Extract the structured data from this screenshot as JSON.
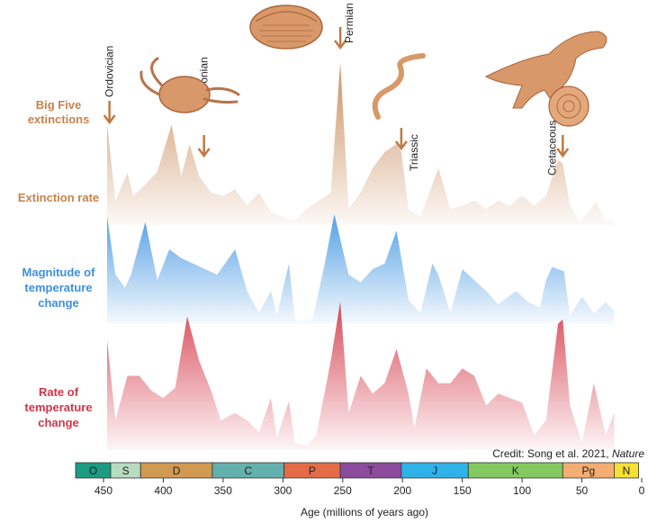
{
  "chart_data": {
    "type": "area",
    "xlabel": "Age (millions of years ago)",
    "xlim": [
      0,
      460
    ],
    "x_reversed": true,
    "xticks": [
      450,
      400,
      350,
      300,
      250,
      200,
      150,
      100,
      50,
      0
    ],
    "credit": {
      "text": "Credit: Song et al. 2021, ",
      "journal": "Nature"
    },
    "big_five_label": [
      "Big Five",
      "extinctions"
    ],
    "extinction_events": [
      {
        "name": "Ordovician",
        "age": 445
      },
      {
        "name": "Devonian",
        "age": 372
      },
      {
        "name": "Permian",
        "age": 252
      },
      {
        "name": "Triassic",
        "age": 201
      },
      {
        "name": "Cretaceous",
        "age": 66
      }
    ],
    "series": [
      {
        "name": "Extinction rate",
        "color": "#c98a5a",
        "x": [
          447,
          440,
          430,
          425,
          415,
          405,
          393,
          385,
          378,
          370,
          360,
          350,
          340,
          330,
          320,
          310,
          300,
          290,
          280,
          270,
          260,
          252,
          245,
          235,
          225,
          215,
          205,
          201,
          195,
          185,
          170,
          160,
          150,
          140,
          130,
          120,
          110,
          100,
          90,
          80,
          70,
          66,
          60,
          52,
          45,
          38,
          30,
          23
        ],
        "y": [
          0.62,
          0.15,
          0.32,
          0.18,
          0.25,
          0.33,
          0.62,
          0.3,
          0.5,
          0.3,
          0.2,
          0.18,
          0.22,
          0.12,
          0.2,
          0.08,
          0.05,
          0.03,
          0.1,
          0.15,
          0.2,
          1.0,
          0.1,
          0.2,
          0.35,
          0.45,
          0.5,
          0.45,
          0.1,
          0.05,
          0.35,
          0.1,
          0.12,
          0.15,
          0.1,
          0.15,
          0.12,
          0.18,
          0.12,
          0.18,
          0.4,
          0.38,
          0.12,
          0.02,
          0.08,
          0.14,
          0.02,
          0.04
        ]
      },
      {
        "name": [
          "Magnitude of",
          "temperature",
          "change"
        ],
        "color": "#4a9be3",
        "x": [
          447,
          440,
          432,
          427,
          415,
          405,
          395,
          385,
          375,
          365,
          355,
          340,
          330,
          320,
          310,
          305,
          295,
          290,
          285,
          275,
          265,
          257,
          245,
          235,
          225,
          215,
          205,
          195,
          185,
          175,
          170,
          160,
          150,
          140,
          130,
          120,
          105,
          95,
          85,
          80,
          75,
          65,
          60,
          50,
          40,
          30,
          23
        ],
        "y": [
          0.98,
          0.45,
          0.33,
          0.45,
          0.93,
          0.4,
          0.68,
          0.6,
          0.55,
          0.5,
          0.45,
          0.68,
          0.3,
          0.1,
          0.3,
          0.08,
          0.55,
          0.05,
          0.02,
          0.05,
          0.55,
          1.0,
          0.45,
          0.38,
          0.5,
          0.55,
          0.85,
          0.22,
          0.1,
          0.55,
          0.45,
          0.1,
          0.5,
          0.4,
          0.3,
          0.18,
          0.3,
          0.2,
          0.15,
          0.4,
          0.52,
          0.48,
          0.08,
          0.25,
          0.1,
          0.2,
          0.12
        ]
      },
      {
        "name": [
          "Rate of",
          "temperature",
          "change"
        ],
        "color": "#d6404f",
        "x": [
          447,
          440,
          430,
          420,
          410,
          400,
          390,
          380,
          370,
          360,
          352,
          340,
          330,
          320,
          310,
          305,
          295,
          290,
          280,
          272,
          260,
          252,
          245,
          235,
          225,
          215,
          205,
          195,
          190,
          180,
          170,
          160,
          150,
          140,
          130,
          120,
          110,
          100,
          90,
          80,
          70,
          66,
          60,
          50,
          40,
          30,
          23
        ],
        "y": [
          0.74,
          0.2,
          0.5,
          0.5,
          0.4,
          0.35,
          0.42,
          0.9,
          0.6,
          0.4,
          0.2,
          0.25,
          0.2,
          0.12,
          0.35,
          0.08,
          0.33,
          0.05,
          0.03,
          0.1,
          0.6,
          1.0,
          0.25,
          0.5,
          0.38,
          0.45,
          0.68,
          0.38,
          0.15,
          0.55,
          0.45,
          0.45,
          0.55,
          0.5,
          0.3,
          0.38,
          0.35,
          0.32,
          0.1,
          0.2,
          0.85,
          0.88,
          0.3,
          0.05,
          0.45,
          0.1,
          0.25
        ]
      }
    ],
    "periods": [
      {
        "label": "O",
        "start": 485,
        "end": 444,
        "color": "#1a9c82"
      },
      {
        "label": "S",
        "start": 444,
        "end": 419,
        "color": "#b8dcc0"
      },
      {
        "label": "D",
        "start": 419,
        "end": 359,
        "color": "#d09a50"
      },
      {
        "label": "C",
        "start": 359,
        "end": 299,
        "color": "#63b0ac"
      },
      {
        "label": "P",
        "start": 299,
        "end": 252,
        "color": "#e36b47"
      },
      {
        "label": "T",
        "start": 252,
        "end": 201,
        "color": "#8c4b9c"
      },
      {
        "label": "J",
        "start": 201,
        "end": 145,
        "color": "#2fb2e8"
      },
      {
        "label": "K",
        "start": 145,
        "end": 66,
        "color": "#84c95f"
      },
      {
        "label": "Pg",
        "start": 66,
        "end": 23,
        "color": "#f4ae72"
      },
      {
        "label": "N",
        "start": 23,
        "end": 2.6,
        "color": "#f5e133"
      }
    ]
  }
}
